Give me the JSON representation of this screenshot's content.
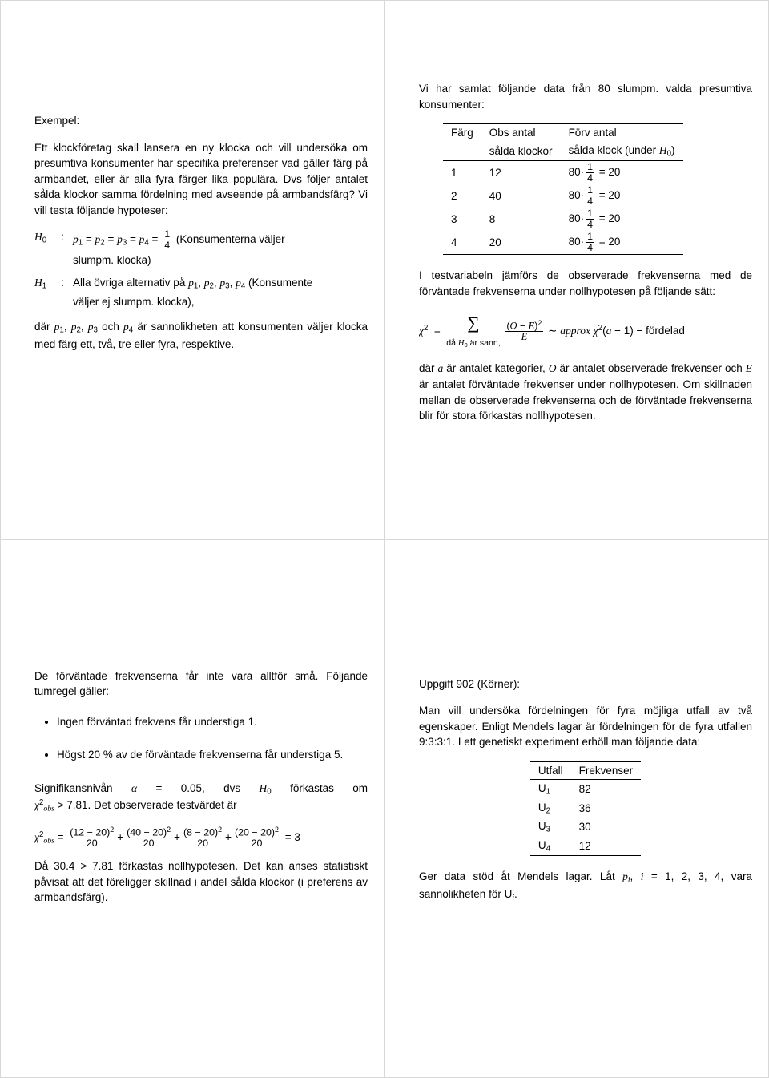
{
  "text_color": "#000000",
  "background_color": "#ffffff",
  "border_color": "#d8d8d8",
  "slide1": {
    "heading": "Exempel:",
    "para1": "Ett klockföretag skall lansera en ny klocka och vill undersöka om presumtiva konsumenter har specifika preferenser vad gäller färg på armbandet, eller är alla fyra färger lika populära. Dvs följer antalet sålda klockor samma fördelning med avseende på armbandsfärg? Vi vill testa följande hypoteser:",
    "h0_label": "H",
    "h0_sub": "0",
    "h0_body_prefix": "p",
    "h0_eq": " = ",
    "h0_frac_num": "1",
    "h0_frac_den": "4",
    "h0_tail": " (Konsumenterna väljer",
    "h0_cont": "slumpm. klocka)",
    "h1_label": "H",
    "h1_sub": "1",
    "h1_body": "Alla övriga alternativ på ",
    "h1_tail": " (Konsumente",
    "h1_cont": "väljer ej slumpm. klocka),",
    "p_list1": "p",
    "p_list_sep": ", ",
    "where_prefix": "där ",
    "where_mid": " och ",
    "where_tail": " är sannolikheten att konsumenten väljer klocka med färg ett, två, tre eller fyra, respektive."
  },
  "slide2": {
    "intro": "Vi har samlat följande data från 80 slumpm. valda presumtiva konsumenter:",
    "table": {
      "col1": "Färg",
      "col2a": "Obs antal",
      "col2b": "sålda klockor",
      "col3a": "Förv antal",
      "col3b": "sålda klock (under ",
      "col3b_end": ")",
      "rows": [
        {
          "farg": "1",
          "obs": "12",
          "forv": "80·",
          "eq": " = 20"
        },
        {
          "farg": "2",
          "obs": "40",
          "forv": "80·",
          "eq": " = 20"
        },
        {
          "farg": "3",
          "obs": "8",
          "forv": "80·",
          "eq": " = 20"
        },
        {
          "farg": "4",
          "obs": "20",
          "forv": "80·",
          "eq": " = 20"
        }
      ],
      "frac_num": "1",
      "frac_den": "4"
    },
    "para2": "I testvariabeln jämförs de observerade frekvenserna med de förväntade frekvenserna under nollhypotesen på följande sätt:",
    "chi": "χ",
    "chi_sup": "2",
    "approx": "approx",
    "df": "(a − 1)",
    "tail": " −  fördelad",
    "dnote1": "då ",
    "dnote2": " är sann,",
    "para3_pre": "där ",
    "para3_a": "a",
    "para3_mid1": " är antalet kategorier, ",
    "para3_O": "O",
    "para3_mid2": " är antalet observerade frekvenser och ",
    "para3_E": "E",
    "para3_tail": " är antalet förväntade frekvenser under nollhypotesen. Om skillnaden mellan de observerade frekvenserna och de förväntade frekvenserna blir för stora förkastas nollhypotesen."
  },
  "slide3": {
    "para1": "De förväntade frekvenserna får inte vara alltför små. Följande tumregel gäller:",
    "bullet1": "Ingen förväntad frekvens får understiga 1.",
    "bullet2": "Högst 20 % av de förväntade frekvenserna får understiga 5.",
    "sig_pre": "Signifikansnivån ",
    "alpha": "α",
    "sig_mid": " = 0.05, dvs ",
    "sig_tail": " förkastas om ",
    "crit_pre1": "",
    "crit_gt": " > 7.81. Det observerade testvärdet är",
    "chi_terms": [
      {
        "n": "(12 − 20)",
        "d": "20"
      },
      {
        "n": "(40 − 20)",
        "d": "20"
      },
      {
        "n": "(8 − 20)",
        "d": "20"
      },
      {
        "n": "(20 − 20)",
        "d": "20"
      }
    ],
    "chi_result": " = 3",
    "para_last": "Då 30.4 > 7.81 förkastas nollhypotesen. Det kan anses statistiskt påvisat att det föreligger skillnad i andel sålda klockor (i preferens av armbandsfärg)."
  },
  "slide4": {
    "head": "Uppgift 902 (Körner):",
    "para1": "Man vill undersöka fördelningen för fyra möjliga utfall av två egenskaper. Enligt Mendels lagar är fördelningen för de fyra utfallen 9:3:3:1. I ett genetiskt experiment erhöll man följande data:",
    "table": {
      "c1": "Utfall",
      "c2": "Frekvenser",
      "rows": [
        {
          "u": "U",
          "s": "1",
          "f": "82"
        },
        {
          "u": "U",
          "s": "2",
          "f": "36"
        },
        {
          "u": "U",
          "s": "3",
          "f": "30"
        },
        {
          "u": "U",
          "s": "4",
          "f": "12"
        }
      ]
    },
    "para2_pre": "Ger data stöd åt Mendels lagar. Låt ",
    "para2_mid": ", i = 1, 2, 3, 4,",
    "para2_tail": " vara sannolikheten för U",
    "para2_end": "."
  }
}
